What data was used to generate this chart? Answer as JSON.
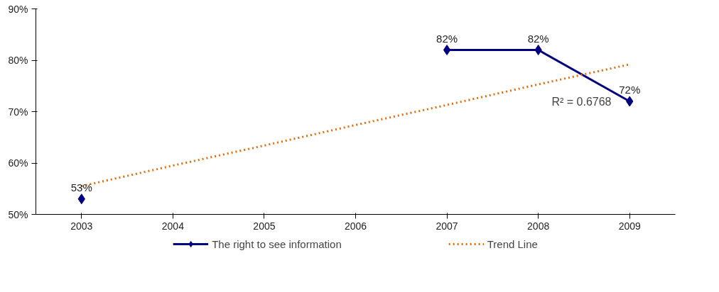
{
  "chart_data": {
    "type": "line",
    "categories": [
      "2003",
      "2004",
      "2005",
      "2006",
      "2007",
      "2008",
      "2009"
    ],
    "series": [
      {
        "name": "The right to see information",
        "color": "#000080",
        "marker": "diamond",
        "values": [
          53,
          null,
          null,
          null,
          82,
          82,
          72
        ],
        "value_labels": [
          "53%",
          null,
          null,
          null,
          "82%",
          "82%",
          "72%"
        ]
      },
      {
        "name": "Trend Line",
        "color": "#e36c09",
        "marker": "none",
        "line_style": "dotted",
        "values": [
          55.5,
          59.5,
          63.4,
          67.4,
          71.3,
          75.3,
          79.2
        ]
      }
    ],
    "ylim": [
      50,
      90
    ],
    "yticks": [
      {
        "value": 50,
        "label": "50%"
      },
      {
        "value": 60,
        "label": "60%"
      },
      {
        "value": 70,
        "label": "70%"
      },
      {
        "value": 80,
        "label": "80%"
      },
      {
        "value": 90,
        "label": "90%"
      }
    ],
    "annotations": [
      "R² = 0.6768"
    ],
    "grid": false,
    "legend": "bottom"
  }
}
